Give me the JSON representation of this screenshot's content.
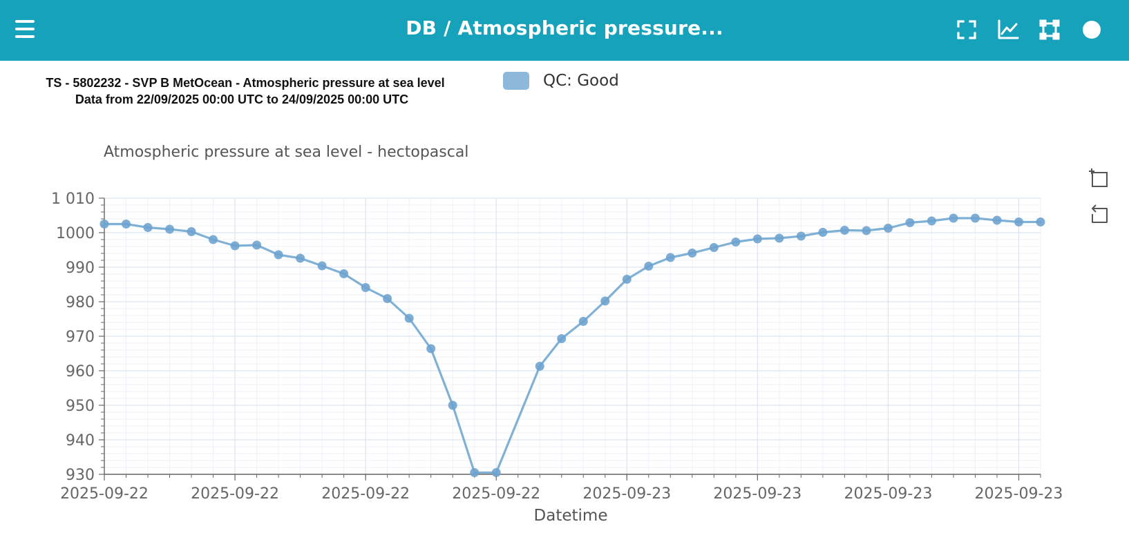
{
  "header": {
    "title": "DB / Atmospheric pressure...",
    "icons": [
      "menu-icon",
      "fullscreen-icon",
      "line-chart-icon",
      "selection-icon",
      "status-dot-icon"
    ]
  },
  "chart_heading": {
    "line1": "TS - 5802232 - SVP B MetOcean - Atmospheric pressure at sea level",
    "line2": "Data from 22/09/2025 00:00 UTC to 24/09/2025 00:00 UTC"
  },
  "legend": {
    "label": "QC: Good",
    "color": "#8db8da"
  },
  "side_tools": [
    "zoom-select-icon",
    "zoom-reset-icon"
  ],
  "colors": {
    "accent": "#17a2bc",
    "series": "#7fb0d6",
    "point": "#6fa3cf"
  },
  "chart_data": {
    "type": "line",
    "title": "Atmospheric pressure at sea level - hectopascal",
    "xlabel": "Datetime",
    "ylabel": "Atmospheric pressure at sea level - hectopascal",
    "ylim": [
      930,
      1010
    ],
    "yticks": [
      "930",
      "940",
      "950",
      "960",
      "970",
      "980",
      "990",
      "1000",
      "1 010"
    ],
    "xlim": [
      0,
      43
    ],
    "xticks": [
      {
        "x": 0,
        "label": "2025-09-22"
      },
      {
        "x": 6,
        "label": "2025-09-22"
      },
      {
        "x": 12,
        "label": "2025-09-22"
      },
      {
        "x": 18,
        "label": "2025-09-22"
      },
      {
        "x": 24,
        "label": "2025-09-23"
      },
      {
        "x": 30,
        "label": "2025-09-23"
      },
      {
        "x": 36,
        "label": "2025-09-23"
      },
      {
        "x": 42,
        "label": "2025-09-23"
      }
    ],
    "grid": true,
    "series": [
      {
        "name": "QC: Good",
        "x": [
          0,
          1,
          2,
          3,
          4,
          5,
          6,
          7,
          8,
          9,
          10,
          11,
          12,
          13,
          14,
          15,
          16,
          17,
          18,
          20,
          21,
          22,
          23,
          24,
          25,
          26,
          27,
          28,
          29,
          30,
          31,
          32,
          33,
          34,
          35,
          36,
          37,
          38,
          39,
          40,
          41,
          42,
          43
        ],
        "values": [
          1002.5,
          1002.5,
          1001.5,
          1001.0,
          1000.3,
          998.0,
          996.2,
          996.4,
          993.6,
          992.6,
          990.4,
          988.1,
          984.1,
          980.9,
          975.2,
          966.4,
          950.0,
          930.5,
          930.5,
          961.3,
          969.3,
          974.3,
          980.2,
          986.5,
          990.3,
          992.8,
          994.1,
          995.7,
          997.3,
          998.2,
          998.4,
          999.0,
          1000.1,
          1000.7,
          1000.6,
          1001.3,
          1002.9,
          1003.4,
          1004.2,
          1004.2,
          1003.6,
          1003.1,
          1003.1
        ]
      }
    ]
  }
}
